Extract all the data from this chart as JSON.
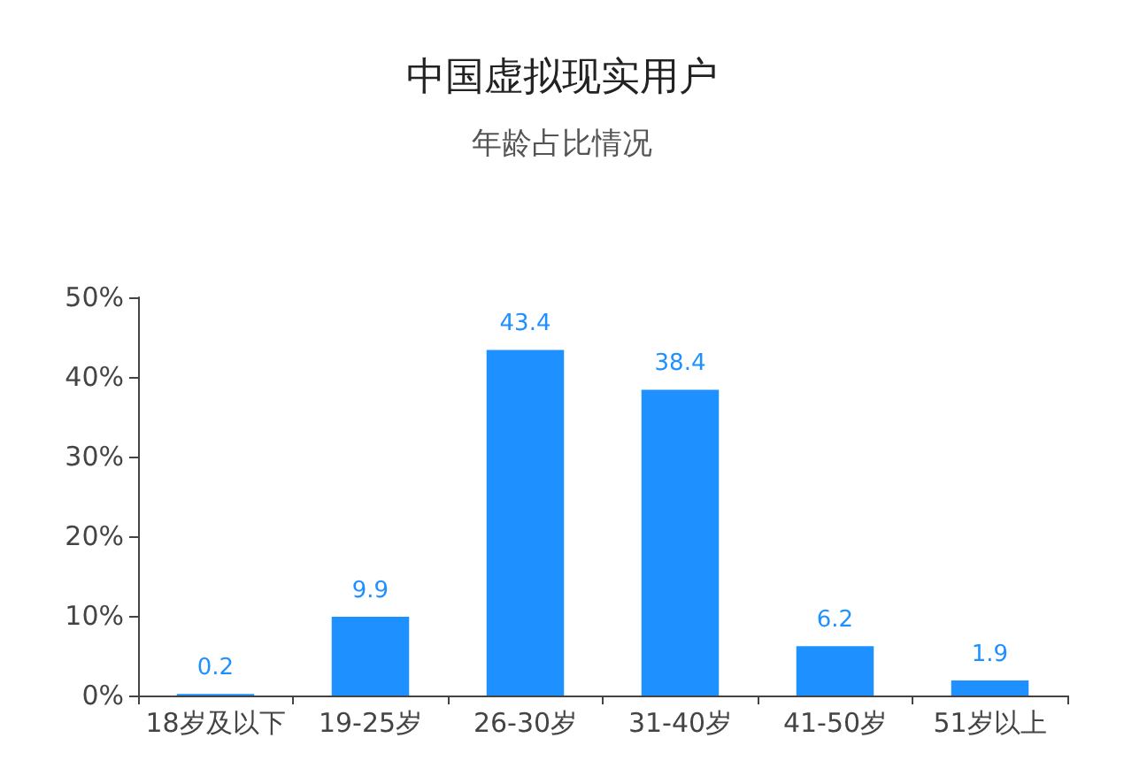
{
  "chart_data": {
    "type": "bar",
    "title": "中国虚拟现实用户",
    "subtitle": "年龄占比情况",
    "categories": [
      "18岁及以下",
      "19-25岁",
      "26-30岁",
      "31-40岁",
      "41-50岁",
      "51岁以上"
    ],
    "values": [
      0.2,
      9.9,
      43.4,
      38.4,
      6.2,
      1.9
    ],
    "color": "#1e90ff",
    "ylim": [
      0,
      50
    ],
    "yticks": [
      {
        "value": 0,
        "label": "0%"
      },
      {
        "value": 10,
        "label": "10%"
      },
      {
        "value": 20,
        "label": "20%"
      },
      {
        "value": 30,
        "label": "30%"
      },
      {
        "value": 40,
        "label": "40%"
      },
      {
        "value": 50,
        "label": "50%"
      }
    ],
    "data_labels": true
  }
}
